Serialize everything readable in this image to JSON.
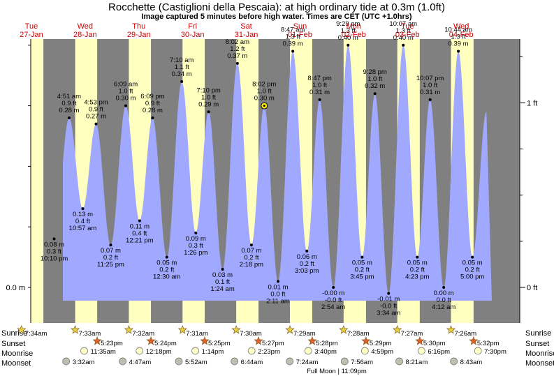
{
  "title": "Rocchette (Castiglioni della Pescaia): at high  ordinary tide at 0.3m (1.0ft)",
  "subtitle": "Image captured 5 minutes before high water. Times are CET (UTC +1.0hrs)",
  "colors": {
    "day": "#ffffc0",
    "night": "#808080",
    "tide": "#a0a8ff",
    "day_label": "#cc0000",
    "sun": "#e8d040",
    "sunset": "#e06030",
    "moonrise": "#ffffc8",
    "moonset": "#c0c0b0"
  },
  "chart_data": {
    "type": "area",
    "days": [
      {
        "dow": "Tue",
        "date": "27-Jan"
      },
      {
        "dow": "Wed",
        "date": "28-Jan"
      },
      {
        "dow": "Thu",
        "date": "29-Jan"
      },
      {
        "dow": "Fri",
        "date": "30-Jan"
      },
      {
        "dow": "Sat",
        "date": "31-Jan"
      },
      {
        "dow": "Sun",
        "date": "01-Feb"
      },
      {
        "dow": "Mon",
        "date": "02-Feb"
      },
      {
        "dow": "Tue",
        "date": "03-Feb"
      },
      {
        "dow": "Wed",
        "date": "04-Feb"
      }
    ],
    "y_left_label": "0.0 m",
    "y_right_labels": [
      "0 ft",
      "1 ft"
    ],
    "ylim_m": [
      -0.03,
      0.45
    ],
    "tides": [
      {
        "time": "10:10 pm",
        "m": "0.08 m",
        "ft": "0.3 ft",
        "day": 0,
        "hour": 22.17,
        "h": 0.08,
        "type": "low"
      },
      {
        "time": "4:51 am",
        "m": "0.28 m",
        "ft": "0.9 ft",
        "day": 1,
        "hour": 4.85,
        "h": 0.28,
        "type": "high"
      },
      {
        "time": "10:57 am",
        "m": "0.13 m",
        "ft": "0.4 ft",
        "day": 1,
        "hour": 10.95,
        "h": 0.13,
        "type": "low"
      },
      {
        "time": "4:53 pm",
        "m": "0.27 m",
        "ft": "0.9 ft",
        "day": 1,
        "hour": 16.88,
        "h": 0.27,
        "type": "high"
      },
      {
        "time": "11:25 pm",
        "m": "0.07 m",
        "ft": "0.2 ft",
        "day": 1,
        "hour": 23.42,
        "h": 0.07,
        "type": "low"
      },
      {
        "time": "6:09 am",
        "m": "0.30 m",
        "ft": "1.0 ft",
        "day": 2,
        "hour": 6.15,
        "h": 0.3,
        "type": "high"
      },
      {
        "time": "12:21 pm",
        "m": "0.11 m",
        "ft": "0.4 ft",
        "day": 2,
        "hour": 12.35,
        "h": 0.11,
        "type": "low"
      },
      {
        "time": "6:09 pm",
        "m": "0.28 m",
        "ft": "0.9 ft",
        "day": 2,
        "hour": 18.15,
        "h": 0.28,
        "type": "high"
      },
      {
        "time": "12:30 am",
        "m": "0.05 m",
        "ft": "0.2 ft",
        "day": 3,
        "hour": 0.5,
        "h": 0.05,
        "type": "low"
      },
      {
        "time": "7:10 am",
        "m": "0.34 m",
        "ft": "1.1 ft",
        "day": 3,
        "hour": 7.17,
        "h": 0.34,
        "type": "high"
      },
      {
        "time": "1:26 pm",
        "m": "0.09 m",
        "ft": "0.3 ft",
        "day": 3,
        "hour": 13.43,
        "h": 0.09,
        "type": "low"
      },
      {
        "time": "7:10 pm",
        "m": "0.29 m",
        "ft": "1.0 ft",
        "day": 3,
        "hour": 19.17,
        "h": 0.29,
        "type": "high"
      },
      {
        "time": "1:24 am",
        "m": "0.03 m",
        "ft": "0.1 ft",
        "day": 4,
        "hour": 1.4,
        "h": 0.03,
        "type": "low"
      },
      {
        "time": "8:02 am",
        "m": "0.37 m",
        "ft": "1.2 ft",
        "day": 4,
        "hour": 8.03,
        "h": 0.37,
        "type": "high"
      },
      {
        "time": "2:18 pm",
        "m": "0.07 m",
        "ft": "0.2 ft",
        "day": 4,
        "hour": 14.3,
        "h": 0.07,
        "type": "low"
      },
      {
        "time": "8:02 pm",
        "m": "0.30 m",
        "ft": "1.0 ft",
        "day": 4,
        "hour": 20.03,
        "h": 0.3,
        "type": "high",
        "current": true
      },
      {
        "time": "2:11 am",
        "m": "0.01 m",
        "ft": "0.0 ft",
        "day": 5,
        "hour": 2.18,
        "h": 0.01,
        "type": "low"
      },
      {
        "time": "8:47 am",
        "m": "0.39 m",
        "ft": "1.3 ft",
        "day": 5,
        "hour": 8.78,
        "h": 0.39,
        "type": "high"
      },
      {
        "time": "3:03 pm",
        "m": "0.06 m",
        "ft": "0.2 ft",
        "day": 5,
        "hour": 15.05,
        "h": 0.06,
        "type": "low"
      },
      {
        "time": "8:47 pm",
        "m": "0.31 m",
        "ft": "1.0 ft",
        "day": 5,
        "hour": 20.78,
        "h": 0.31,
        "type": "high"
      },
      {
        "time": "2:54 am",
        "m": "-0.00 m",
        "ft": "-0.0 ft",
        "day": 6,
        "hour": 2.9,
        "h": 0.0,
        "type": "low"
      },
      {
        "time": "9:29 am",
        "m": "0.40 m",
        "ft": "1.3 ft",
        "day": 6,
        "hour": 9.48,
        "h": 0.4,
        "type": "high"
      },
      {
        "time": "3:45 pm",
        "m": "0.05 m",
        "ft": "0.2 ft",
        "day": 6,
        "hour": 15.75,
        "h": 0.05,
        "type": "low"
      },
      {
        "time": "9:28 pm",
        "m": "0.32 m",
        "ft": "1.0 ft",
        "day": 6,
        "hour": 21.47,
        "h": 0.32,
        "type": "high"
      },
      {
        "time": "3:34 am",
        "m": "-0.01 m",
        "ft": "-0.0 ft",
        "day": 7,
        "hour": 3.57,
        "h": -0.01,
        "type": "low"
      },
      {
        "time": "10:07 am",
        "m": "0.40 m",
        "ft": "1.3 ft",
        "day": 7,
        "hour": 10.12,
        "h": 0.4,
        "type": "high"
      },
      {
        "time": "4:23 pm",
        "m": "0.05 m",
        "ft": "0.2 ft",
        "day": 7,
        "hour": 16.38,
        "h": 0.05,
        "type": "low"
      },
      {
        "time": "10:07 pm",
        "m": "0.31 m",
        "ft": "1.0 ft",
        "day": 7,
        "hour": 22.12,
        "h": 0.31,
        "type": "high"
      },
      {
        "time": "4:12 am",
        "m": "0.00 m",
        "ft": "0.0 ft",
        "day": 8,
        "hour": 4.2,
        "h": 0.0,
        "type": "low"
      },
      {
        "time": "10:44 am",
        "m": "0.39 m",
        "ft": "1.3 ft",
        "day": 8,
        "hour": 10.73,
        "h": 0.39,
        "type": "high"
      },
      {
        "time": "5:00 pm",
        "m": "0.05 m",
        "ft": "0.2 ft",
        "day": 8,
        "hour": 17.0,
        "h": 0.05,
        "type": "low"
      }
    ],
    "sunrise": [
      {
        "day": 0,
        "hour": 7.57,
        "time": "7:34am"
      },
      {
        "day": 1,
        "hour": 7.55,
        "time": "7:33am"
      },
      {
        "day": 2,
        "hour": 7.53,
        "time": "7:32am"
      },
      {
        "day": 3,
        "hour": 7.52,
        "time": "7:31am"
      },
      {
        "day": 4,
        "hour": 7.5,
        "time": "7:30am"
      },
      {
        "day": 5,
        "hour": 7.48,
        "time": "7:29am"
      },
      {
        "day": 6,
        "hour": 7.47,
        "time": "7:28am"
      },
      {
        "day": 7,
        "hour": 7.45,
        "time": "7:27am"
      },
      {
        "day": 8,
        "hour": 7.43,
        "time": "7:26am"
      }
    ],
    "sunset": [
      {
        "day": 1,
        "hour": 17.38,
        "time": "5:23pm"
      },
      {
        "day": 2,
        "hour": 17.4,
        "time": "5:24pm"
      },
      {
        "day": 3,
        "hour": 17.42,
        "time": "5:25pm"
      },
      {
        "day": 4,
        "hour": 17.45,
        "time": "5:27pm"
      },
      {
        "day": 5,
        "hour": 17.47,
        "time": "5:28pm"
      },
      {
        "day": 6,
        "hour": 17.48,
        "time": "5:29pm"
      },
      {
        "day": 7,
        "hour": 17.5,
        "time": "5:30pm"
      },
      {
        "day": 8,
        "hour": 17.53,
        "time": "5:32pm"
      }
    ],
    "moonrise": [
      {
        "day": 1,
        "hour": 11.58,
        "time": "11:35am"
      },
      {
        "day": 2,
        "hour": 12.3,
        "time": "12:18pm"
      },
      {
        "day": 3,
        "hour": 13.23,
        "time": "1:14pm"
      },
      {
        "day": 4,
        "hour": 14.38,
        "time": "2:23pm"
      },
      {
        "day": 5,
        "hour": 15.67,
        "time": "3:40pm"
      },
      {
        "day": 6,
        "hour": 16.98,
        "time": "4:59pm"
      },
      {
        "day": 7,
        "hour": 18.27,
        "time": "6:16pm"
      },
      {
        "day": 8,
        "hour": 19.5,
        "time": "7:30pm"
      }
    ],
    "moonset": [
      {
        "day": 1,
        "hour": 3.53,
        "time": "3:32am"
      },
      {
        "day": 2,
        "hour": 4.78,
        "time": "4:47am"
      },
      {
        "day": 3,
        "hour": 5.87,
        "time": "5:52am"
      },
      {
        "day": 4,
        "hour": 6.73,
        "time": "6:44am"
      },
      {
        "day": 5,
        "hour": 7.4,
        "time": "7:24am"
      },
      {
        "day": 6,
        "hour": 7.93,
        "time": "7:56am"
      },
      {
        "day": 7,
        "hour": 8.35,
        "time": "8:21am"
      },
      {
        "day": 8,
        "hour": 8.72,
        "time": "8:43am"
      }
    ],
    "row_labels": {
      "sunrise": "Sunrise",
      "sunset": "Sunset",
      "moonrise": "Moonrise",
      "moonset": "Moonset"
    },
    "moon_phase": "Full Moon | 11:09pm"
  }
}
